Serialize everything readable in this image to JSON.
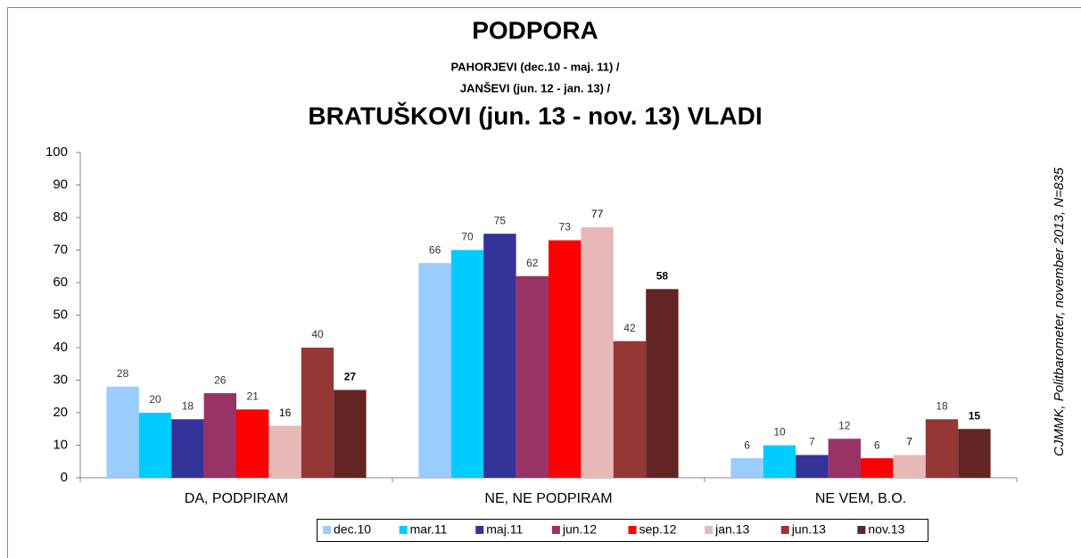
{
  "chart_data": {
    "type": "bar",
    "title": "PODPORA",
    "subtitle": [
      "PAHORJEVI (dec.10 - maj. 11) /",
      "JANŠEVI (jun. 12 - jan. 13) /"
    ],
    "title2": "BRATUŠKOVI (jun. 13 - nov. 13) VLADI",
    "source": "CJMMK, Politbarometer, november 2013, N=835",
    "categories": [
      "DA, PODPIRAM",
      "NE, NE PODPIRAM",
      "NE VEM, B.O."
    ],
    "series": [
      {
        "name": "dec.10",
        "color": "#99ccff",
        "values": [
          28,
          66,
          6
        ]
      },
      {
        "name": "mar.11",
        "color": "#00ccff",
        "values": [
          20,
          70,
          10
        ]
      },
      {
        "name": "maj.11",
        "color": "#333399",
        "values": [
          18,
          75,
          7
        ]
      },
      {
        "name": "jun.12",
        "color": "#993366",
        "values": [
          26,
          62,
          12
        ]
      },
      {
        "name": "sep.12",
        "color": "#ff0000",
        "values": [
          21,
          73,
          6
        ]
      },
      {
        "name": "jan.13",
        "color": "#e6b9b8",
        "values": [
          16,
          77,
          7
        ]
      },
      {
        "name": "jun.13",
        "color": "#953735",
        "values": [
          40,
          42,
          18
        ]
      },
      {
        "name": "nov.13",
        "color": "#632523",
        "values": [
          27,
          58,
          15
        ]
      }
    ],
    "ylim": [
      0,
      100
    ],
    "yticks": [
      0,
      10,
      20,
      30,
      40,
      50,
      60,
      70,
      80,
      90,
      100
    ],
    "legend": "bottom"
  }
}
